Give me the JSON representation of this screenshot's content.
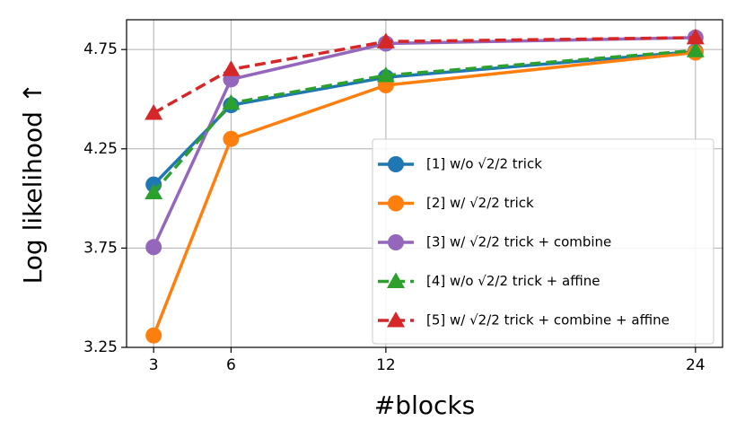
{
  "chart_data": {
    "type": "line",
    "x_label": "#blocks",
    "y_label": "Log likelihood ↑",
    "x": [
      3,
      6,
      12,
      24
    ],
    "series": [
      {
        "name": "[1] w/o √2/2 trick",
        "color": "#1f77b4",
        "marker": "circle",
        "linestyle": "solid",
        "values": [
          4.07,
          4.47,
          4.61,
          4.74
        ]
      },
      {
        "name": "[2] w/ √2/2 trick",
        "color": "#ff7f0e",
        "marker": "circle",
        "linestyle": "solid",
        "values": [
          3.31,
          4.3,
          4.57,
          4.735
        ]
      },
      {
        "name": "[3] w/ √2/2 trick + combine",
        "color": "#9467bd",
        "marker": "circle",
        "linestyle": "solid",
        "values": [
          3.755,
          4.6,
          4.78,
          4.81
        ]
      },
      {
        "name": "[4] w/o √2/2 trick + affine",
        "color": "#2ca02c",
        "marker": "triangle",
        "linestyle": "dashed",
        "values": [
          4.03,
          4.48,
          4.62,
          4.745
        ]
      },
      {
        "name": "[5] w/ √2/2 trick + combine + affine",
        "color": "#d62728",
        "marker": "triangle",
        "linestyle": "dashed",
        "values": [
          4.43,
          4.65,
          4.79,
          4.81
        ]
      }
    ],
    "xlim": [
      1.95,
      25.05
    ],
    "xticks": [
      3,
      6,
      12,
      24
    ],
    "ylim": [
      3.25,
      4.9
    ],
    "yticks": [
      3.25,
      3.75,
      4.25,
      4.75
    ],
    "grid": true,
    "legend": "lower right"
  }
}
